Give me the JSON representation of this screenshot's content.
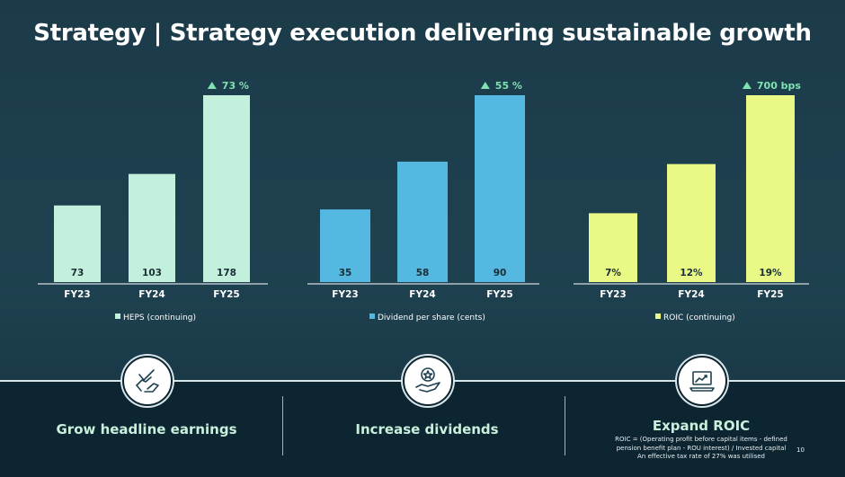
{
  "title": "Strategy | Strategy execution delivering sustainable growth",
  "chart_data": [
    {
      "type": "bar",
      "categories": [
        "FY23",
        "FY24",
        "FY25"
      ],
      "values": [
        73,
        103,
        178
      ],
      "value_labels": [
        "73",
        "103",
        "178"
      ],
      "legend": "HEPS (continuing)",
      "growth_label": "73 %",
      "ylim": [
        0,
        178
      ],
      "color": "#c3f0dc"
    },
    {
      "type": "bar",
      "categories": [
        "FY23",
        "FY24",
        "FY25"
      ],
      "values": [
        35,
        58,
        90
      ],
      "value_labels": [
        "35",
        "58",
        "90"
      ],
      "legend": "Dividend per share (cents)",
      "growth_label": "55 %",
      "ylim": [
        0,
        90
      ],
      "color": "#54b8e0"
    },
    {
      "type": "bar",
      "categories": [
        "FY23",
        "FY24",
        "FY25"
      ],
      "values": [
        7,
        12,
        19
      ],
      "value_labels": [
        "7%",
        "12%",
        "19%"
      ],
      "legend": "ROIC (continuing)",
      "growth_label": "700 bps",
      "ylim": [
        0,
        19
      ],
      "color": "#eaf986"
    }
  ],
  "colors": {
    "growth_arrow": "#7ee3b0",
    "axis": "#ffffff"
  },
  "bottom": {
    "items": [
      {
        "icon": "hand-check-icon",
        "label": "Grow headline earnings"
      },
      {
        "icon": "hand-star-icon",
        "label": "Increase dividends"
      },
      {
        "icon": "laptop-chart-icon",
        "label": "Expand ROIC"
      }
    ],
    "note_lines": [
      "ROIC = (Operating profit before capital items - defined",
      "pension benefit plan - ROU interest) / Invested capital",
      "An effective tax rate of 27% was utilised"
    ],
    "page_number": "10"
  }
}
